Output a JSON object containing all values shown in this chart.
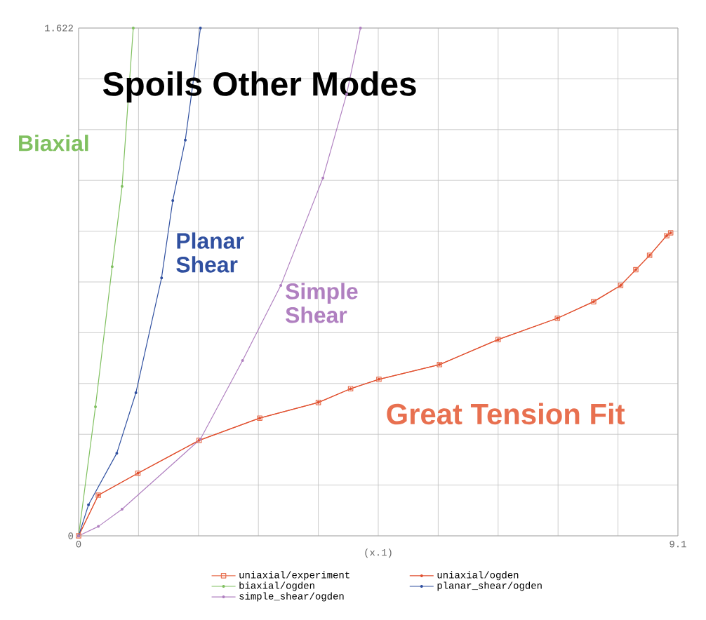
{
  "chart_data": {
    "type": "line",
    "xlabel": "(x.1)",
    "xlim": [
      0,
      9.1
    ],
    "ylim": [
      0,
      1.622
    ],
    "xticks": [
      0,
      9.1
    ],
    "yticks": [
      0,
      1.622
    ],
    "grid": true,
    "legend": "bottom",
    "annotations": [
      "Spoils Other Modes",
      "Biaxial",
      "Planar Shear",
      "Simple Shear",
      "Great Tension Fit"
    ],
    "series": [
      {
        "name": "uniaxial/experiment",
        "color": "#e87050",
        "marker": "square",
        "x": [
          0,
          0.3,
          0.9,
          1.83,
          2.75,
          3.64,
          4.13,
          4.56,
          5.48,
          6.37,
          7.27,
          7.82,
          8.23,
          8.46,
          8.67,
          8.93,
          8.99
        ],
        "values": [
          0,
          0.13,
          0.2,
          0.305,
          0.376,
          0.426,
          0.47,
          0.5,
          0.547,
          0.627,
          0.695,
          0.748,
          0.8,
          0.85,
          0.896,
          0.959,
          0.968
        ]
      },
      {
        "name": "uniaxial/ogden",
        "color": "#e05030",
        "marker": "circle",
        "x": [
          0,
          0.3,
          0.9,
          1.83,
          2.75,
          3.64,
          4.13,
          4.56,
          5.48,
          6.37,
          7.27,
          7.82,
          8.23,
          8.46,
          8.67,
          8.93,
          8.99
        ],
        "values": [
          0,
          0.13,
          0.2,
          0.305,
          0.376,
          0.426,
          0.47,
          0.5,
          0.547,
          0.627,
          0.695,
          0.748,
          0.8,
          0.85,
          0.896,
          0.959,
          0.968
        ]
      },
      {
        "name": "biaxial/ogden",
        "color": "#80c060",
        "marker": "circle",
        "x": [
          0,
          0.256,
          0.51,
          0.66,
          0.83
        ],
        "values": [
          0,
          0.412,
          0.86,
          1.116,
          1.622
        ]
      },
      {
        "name": "planar_shear/ogden",
        "color": "#3050a0",
        "marker": "circle",
        "x": [
          0,
          0.15,
          0.58,
          0.87,
          1.26,
          1.43,
          1.62,
          1.85
        ],
        "values": [
          0,
          0.099,
          0.264,
          0.457,
          0.824,
          1.071,
          1.264,
          1.622
        ]
      },
      {
        "name": "simple_shear/ogden",
        "color": "#b080c0",
        "marker": "circle",
        "x": [
          0,
          0.3,
          0.66,
          1.85,
          2.49,
          3.07,
          3.71,
          4.07,
          4.28
        ],
        "values": [
          0,
          0.03,
          0.085,
          0.309,
          0.56,
          0.8,
          1.143,
          1.411,
          1.622
        ]
      }
    ]
  }
}
